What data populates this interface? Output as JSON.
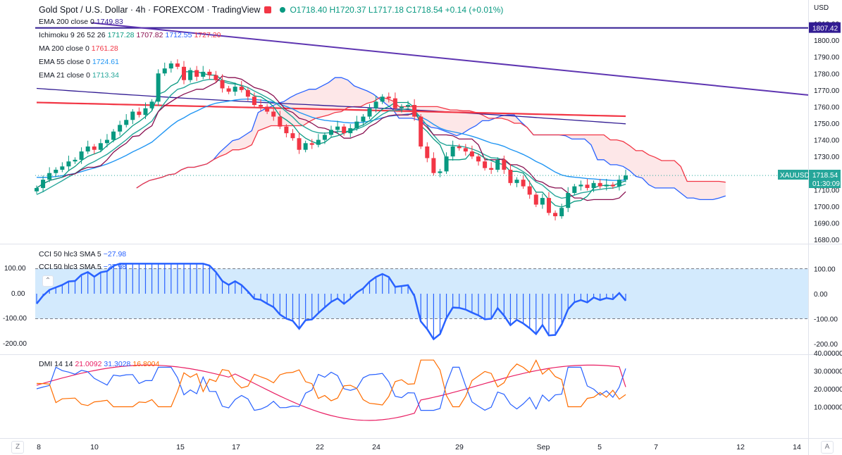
{
  "header": {
    "symbol": "Gold Spot / U.S. Dollar · 4h · FOREXCOM · TradingView",
    "ohlc": "O1718.40 H1720.37 L1717.18 C1718.54 +0.14 (+0.01%)"
  },
  "legend": {
    "ema200": {
      "label": "EMA 200 close 0",
      "value": "1749.83",
      "color": "#311b92"
    },
    "ichimoku": {
      "label": "Ichimoku 9 26 52 26",
      "v1": "1717.28",
      "v2": "1707.82",
      "v3": "1712.55",
      "v4": "1727.20",
      "c1": "#089981",
      "c2": "#880e4f",
      "c3": "#2962ff",
      "c4": "#f23645"
    },
    "ma200": {
      "label": "MA 200 close 0",
      "value": "1761.28",
      "color": "#f23645"
    },
    "ema55": {
      "label": "EMA 55 close 0",
      "value": "1724.61",
      "color": "#2196f3"
    },
    "ema21": {
      "label": "EMA 21 close 0",
      "value": "1713.34",
      "color": "#26a69a"
    }
  },
  "price_axis": {
    "currency": "USD",
    "ticks": [
      "1810.00",
      "1800.00",
      "1790.00",
      "1780.00",
      "1770.00",
      "1760.00",
      "1750.00",
      "1740.00",
      "1730.00",
      "1720.00",
      "1710.00",
      "1700.00",
      "1690.00",
      "1680.00"
    ],
    "tag_line": "1807.42",
    "tag_symbol": "XAUUSD",
    "tag_price": "1718.54",
    "tag_timer": "01:30:09"
  },
  "cci_panel": {
    "label1": "CCI 50 hlc3 SMA 5",
    "value1": "−27.98",
    "label2": "CCI 50 hlc3 SMA 5",
    "value2": "−27.98",
    "ticks": [
      "100.00",
      "0.00",
      "-100.00",
      "-200.00"
    ]
  },
  "dmi_panel": {
    "label": "DMI 14 14",
    "adx": "21.0092",
    "plus_di": "31.3028",
    "minus_di": "16.8004",
    "colors": {
      "adx": "#e91e63",
      "plus": "#2962ff",
      "minus": "#ff6d00"
    },
    "ticks": [
      "40.00000",
      "30.00000",
      "20.00000",
      "10.00000"
    ]
  },
  "x_axis": {
    "ticks": [
      "8",
      "10",
      "15",
      "17",
      "22",
      "24",
      "29",
      "Sep",
      "5",
      "7",
      "12",
      "14"
    ]
  },
  "corners": {
    "bottom_left": "Z",
    "bottom_right": "A"
  },
  "chart_data": {
    "type": "candlestick",
    "title": "Gold Spot / U.S. Dollar · 4h · FOREXCOM",
    "x_categories": [
      "8",
      "10",
      "15",
      "17",
      "22",
      "24",
      "29",
      "Sep",
      "5",
      "7",
      "12",
      "14"
    ],
    "price_range": [
      1680,
      1810
    ],
    "closes": [
      1711,
      1716,
      1720,
      1722,
      1724,
      1727,
      1728,
      1733,
      1736,
      1734,
      1738,
      1740,
      1745,
      1749,
      1752,
      1757,
      1755,
      1759,
      1763,
      1780,
      1783,
      1786,
      1784,
      1776,
      1782,
      1778,
      1781,
      1779,
      1776,
      1771,
      1769,
      1772,
      1770,
      1766,
      1761,
      1760,
      1757,
      1754,
      1748,
      1744,
      1741,
      1734,
      1738,
      1737,
      1740,
      1743,
      1746,
      1748,
      1744,
      1747,
      1751,
      1754,
      1759,
      1763,
      1766,
      1765,
      1759,
      1760,
      1761,
      1754,
      1736,
      1729,
      1720,
      1721,
      1730,
      1736,
      1735,
      1733,
      1730,
      1727,
      1723,
      1722,
      1728,
      1722,
      1714,
      1716,
      1712,
      1707,
      1701,
      1705,
      1696,
      1694,
      1699,
      1708,
      1712,
      1713,
      1711,
      1714,
      1712,
      1713,
      1712,
      1716,
      1718.54
    ],
    "ema21_last": 1713.34,
    "ema55_last": 1724.61,
    "ema200_last": 1749.83,
    "ma200_last": 1761.28,
    "cci_range": [
      -200,
      100
    ],
    "cci_last": -27.98,
    "dmi": {
      "adx_last": 21.0092,
      "plus_di_last": 31.3028,
      "minus_di_last": 16.8004,
      "range": [
        0,
        45
      ]
    }
  }
}
